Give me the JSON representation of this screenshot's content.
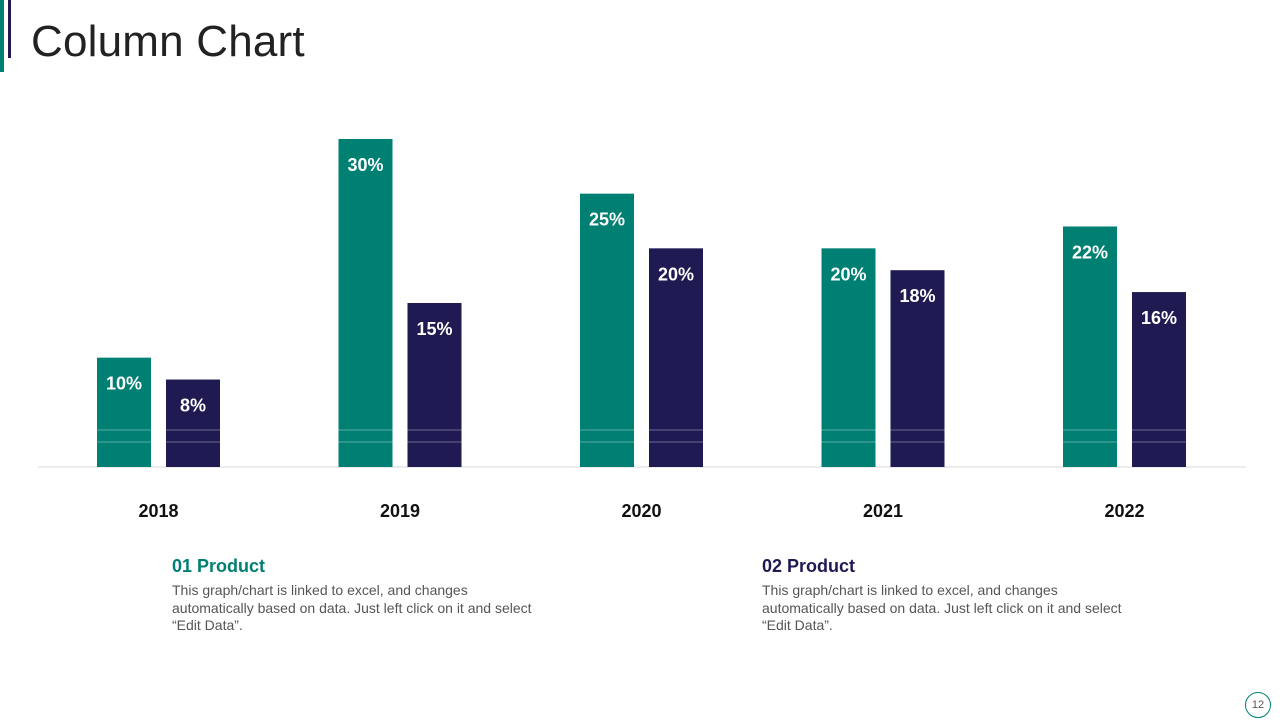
{
  "slide": {
    "title": "Column Chart",
    "page_number": "12"
  },
  "colors": {
    "series1": "#007f73",
    "series2": "#1f1a52",
    "accent": "#007f73"
  },
  "legend": [
    {
      "title": "01 Product",
      "text": "This graph/chart is linked to excel, and changes automatically based on data. Just left click on it and select “Edit Data”."
    },
    {
      "title": "02 Product",
      "text": "This graph/chart is linked to excel, and changes automatically based on data. Just left click on it and select “Edit Data”."
    }
  ],
  "chart_data": {
    "type": "bar",
    "title": "Column Chart",
    "categories": [
      "2018",
      "2019",
      "2020",
      "2021",
      "2022"
    ],
    "series": [
      {
        "name": "01 Product",
        "values": [
          10,
          30,
          25,
          20,
          22
        ],
        "labels": [
          "10%",
          "30%",
          "25%",
          "20%",
          "22%"
        ]
      },
      {
        "name": "02 Product",
        "values": [
          8,
          15,
          20,
          18,
          16
        ],
        "labels": [
          "8%",
          "15%",
          "20%",
          "18%",
          "16%"
        ]
      }
    ],
    "xlabel": "",
    "ylabel": "",
    "ylim": [
      0,
      30
    ],
    "grid": false,
    "legend_position": "bottom"
  }
}
